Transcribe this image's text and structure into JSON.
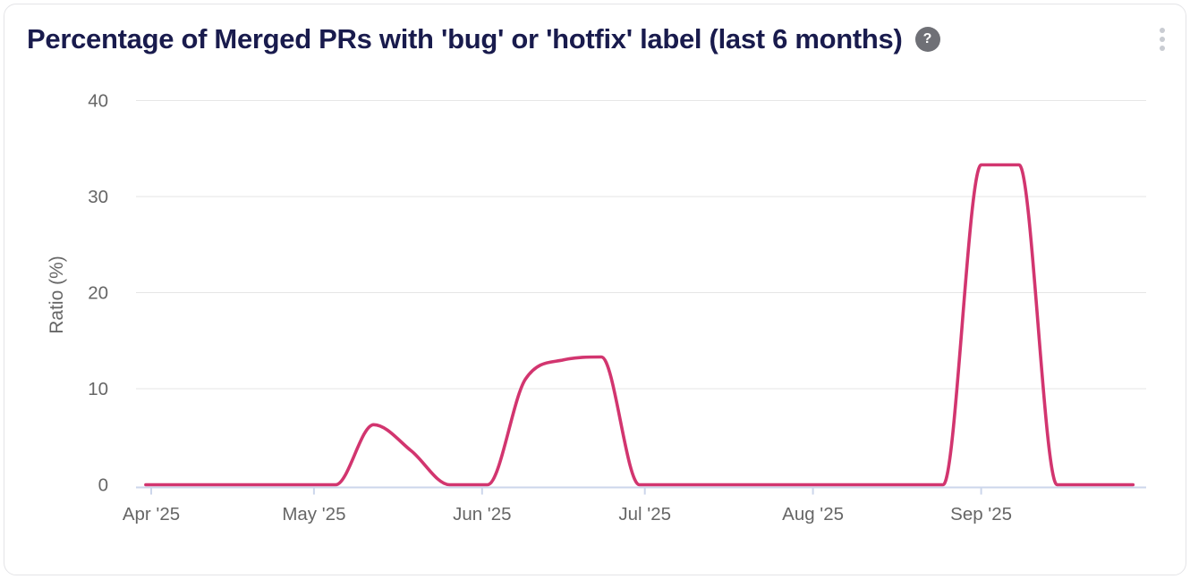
{
  "header": {
    "title": "Percentage of Merged PRs with 'bug' or 'hotfix' label (last 6 months)",
    "help_glyph": "?",
    "menu_icon": "kebab-vertical"
  },
  "colors": {
    "title_text": "#191b4d",
    "series_line": "#d2356f",
    "axis_label": "#666666",
    "grid_line": "#e6e6e6",
    "axis_line": "#ccd6eb",
    "help_icon_bg": "#6f7076",
    "menu_dots": "#c9ccd2",
    "card_border": "#e4e4e7",
    "card_bg": "#ffffff"
  },
  "chart_data": {
    "type": "line",
    "title": "Percentage of Merged PRs with 'bug' or 'hotfix' label (last 6 months)",
    "xlabel": "",
    "ylabel": "Ratio (%)",
    "ylim": [
      0,
      40
    ],
    "yticks": [
      0,
      10,
      20,
      30,
      40
    ],
    "grid": "horizontal-only",
    "legend": "none",
    "curve": "smooth-monotone",
    "series_color": "#d2356f",
    "x_ticks": [
      {
        "label": "Apr '25",
        "date": "2025-04-01"
      },
      {
        "label": "May '25",
        "date": "2025-05-01"
      },
      {
        "label": "Jun '25",
        "date": "2025-06-01"
      },
      {
        "label": "Jul '25",
        "date": "2025-07-01"
      },
      {
        "label": "Aug '25",
        "date": "2025-08-01"
      },
      {
        "label": "Sep '25",
        "date": "2025-09-01"
      }
    ],
    "series": [
      {
        "name": "Ratio (%)",
        "points": [
          [
            "2025-03-31",
            0
          ],
          [
            "2025-04-07",
            0
          ],
          [
            "2025-04-14",
            0
          ],
          [
            "2025-04-21",
            0
          ],
          [
            "2025-04-28",
            0
          ],
          [
            "2025-05-05",
            0
          ],
          [
            "2025-05-12",
            6.25
          ],
          [
            "2025-05-19",
            3.5
          ],
          [
            "2025-05-26",
            0
          ],
          [
            "2025-06-02",
            0
          ],
          [
            "2025-06-09",
            11
          ],
          [
            "2025-06-16",
            13
          ],
          [
            "2025-06-23",
            13.3
          ],
          [
            "2025-06-30",
            0
          ],
          [
            "2025-07-07",
            0
          ],
          [
            "2025-07-14",
            0
          ],
          [
            "2025-07-21",
            0
          ],
          [
            "2025-07-28",
            0
          ],
          [
            "2025-08-04",
            0
          ],
          [
            "2025-08-11",
            0
          ],
          [
            "2025-08-18",
            0
          ],
          [
            "2025-08-25",
            0
          ],
          [
            "2025-09-01",
            33.3
          ],
          [
            "2025-09-08",
            33.3
          ],
          [
            "2025-09-15",
            0
          ],
          [
            "2025-09-22",
            0
          ],
          [
            "2025-09-29",
            0
          ]
        ]
      }
    ]
  }
}
